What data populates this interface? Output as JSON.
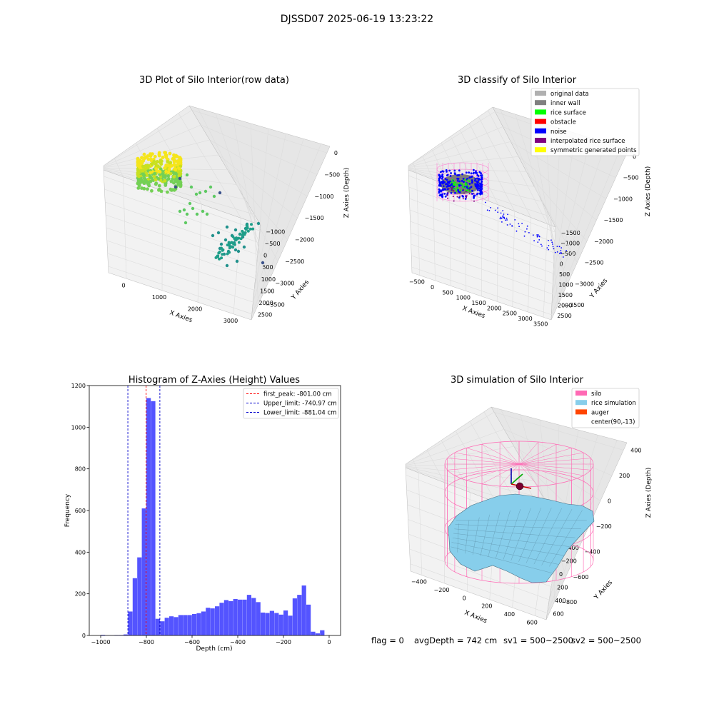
{
  "figure": {
    "title": "DJSSD07 2025-06-19 13:23:22",
    "footer": {
      "flag": "flag = 0",
      "avg_depth": "avgDepth = 742 cm",
      "sv1": "sv1 = 500~2500",
      "sv2": "sv2 = 500~2500"
    }
  },
  "colors": {
    "pane": "#f2f2f2",
    "grid": "#dcdcdc",
    "histogram_bar": "#4b4bff",
    "first_peak_line": "#ff0000",
    "limit_lines": "#0000cc",
    "silo": "#ff69b4",
    "rice_simulation": "#87ceeb",
    "auger": "#ff4500"
  },
  "chart_data": [
    {
      "type": "scatter",
      "projection": "3d",
      "title": "3D Plot of Silo Interior(row data)",
      "xlabel": "X Axies",
      "ylabel": "Y Axies",
      "zlabel": "Z Axies (Depth)",
      "x_ticks": [
        "0",
        "1000",
        "2000",
        "3000"
      ],
      "y_ticks": [
        "−1000",
        "−500",
        "0",
        "500",
        "1000",
        "1500",
        "2000",
        "2500"
      ],
      "z_ticks": [
        "0",
        "−500",
        "−1000",
        "−1500",
        "−2000",
        "−2500",
        "−3000",
        "−3500"
      ],
      "colormap": "viridis",
      "grid": true
    },
    {
      "type": "scatter",
      "projection": "3d",
      "title": "3D classify of Silo Interior",
      "xlabel": "X Axies",
      "ylabel": "Y Axies",
      "zlabel": "Z Axies (Depth)",
      "x_ticks": [
        "−500",
        "0",
        "500",
        "1000",
        "1500",
        "2000",
        "2500",
        "3000",
        "3500"
      ],
      "y_ticks": [
        "−1500",
        "−1000",
        "−500",
        "0",
        "500",
        "1000",
        "1500",
        "2000",
        "2500"
      ],
      "z_ticks": [
        "0",
        "−500",
        "−1000",
        "−1500",
        "−2000",
        "−2500",
        "−3000",
        "−3500"
      ],
      "legend_position": "top-right",
      "legend": [
        {
          "name": "original data",
          "color": "#b0b0b0"
        },
        {
          "name": "inner wall",
          "color": "#808080"
        },
        {
          "name": "rice surface",
          "color": "#00ff00"
        },
        {
          "name": "obstacle",
          "color": "#ff0000"
        },
        {
          "name": "noise",
          "color": "#0000ff"
        },
        {
          "name": "interpolated rice surface",
          "color": "#800080"
        },
        {
          "name": "symmetric generated points",
          "color": "#ffff00"
        }
      ],
      "grid": true
    },
    {
      "type": "bar",
      "title": "Histogram of Z-Axies (Height) Values",
      "xlabel": "Depth (cm)",
      "ylabel": "Frequency",
      "xlim": [
        -1050,
        50
      ],
      "ylim": [
        0,
        1200
      ],
      "x_ticks": [
        -1000,
        -800,
        -600,
        -400,
        -200,
        0
      ],
      "y_ticks": [
        0,
        200,
        400,
        600,
        800,
        1000,
        1200
      ],
      "bin_width": 20,
      "bins": [
        {
          "x": -1000,
          "count": 3
        },
        {
          "x": -980,
          "count": 1
        },
        {
          "x": -960,
          "count": 1
        },
        {
          "x": -940,
          "count": 2
        },
        {
          "x": -920,
          "count": 2
        },
        {
          "x": -900,
          "count": 5
        },
        {
          "x": -880,
          "count": 115
        },
        {
          "x": -860,
          "count": 275
        },
        {
          "x": -840,
          "count": 375
        },
        {
          "x": -820,
          "count": 610
        },
        {
          "x": -800,
          "count": 1140
        },
        {
          "x": -780,
          "count": 1125
        },
        {
          "x": -760,
          "count": 80
        },
        {
          "x": -740,
          "count": 68
        },
        {
          "x": -720,
          "count": 85
        },
        {
          "x": -700,
          "count": 92
        },
        {
          "x": -680,
          "count": 88
        },
        {
          "x": -660,
          "count": 98
        },
        {
          "x": -640,
          "count": 98
        },
        {
          "x": -620,
          "count": 98
        },
        {
          "x": -600,
          "count": 103
        },
        {
          "x": -580,
          "count": 107
        },
        {
          "x": -560,
          "count": 115
        },
        {
          "x": -540,
          "count": 133
        },
        {
          "x": -520,
          "count": 130
        },
        {
          "x": -500,
          "count": 140
        },
        {
          "x": -480,
          "count": 157
        },
        {
          "x": -460,
          "count": 170
        },
        {
          "x": -440,
          "count": 165
        },
        {
          "x": -420,
          "count": 175
        },
        {
          "x": -400,
          "count": 172
        },
        {
          "x": -380,
          "count": 172
        },
        {
          "x": -360,
          "count": 195
        },
        {
          "x": -340,
          "count": 180
        },
        {
          "x": -320,
          "count": 160
        },
        {
          "x": -300,
          "count": 110
        },
        {
          "x": -280,
          "count": 108
        },
        {
          "x": -260,
          "count": 118
        },
        {
          "x": -240,
          "count": 108
        },
        {
          "x": -220,
          "count": 100
        },
        {
          "x": -200,
          "count": 120
        },
        {
          "x": -180,
          "count": 95
        },
        {
          "x": -160,
          "count": 178
        },
        {
          "x": -140,
          "count": 195
        },
        {
          "x": -120,
          "count": 240
        },
        {
          "x": -100,
          "count": 148
        },
        {
          "x": -80,
          "count": 18
        },
        {
          "x": -60,
          "count": 10
        },
        {
          "x": -40,
          "count": 25
        }
      ],
      "vlines": [
        {
          "name": "first_peak: -801.00 cm",
          "x": -801.0,
          "color": "#ff0000"
        },
        {
          "name": "Upper_limit: -740.97 cm",
          "x": -740.97,
          "color": "#0000cc"
        },
        {
          "name": "Lower_limit: -881.04 cm",
          "x": -881.04,
          "color": "#0000cc"
        }
      ],
      "legend_position": "top-right"
    },
    {
      "type": "surface",
      "projection": "3d",
      "title": "3D simulation of Silo Interior",
      "xlabel": "X Axies",
      "ylabel": "Y Axies",
      "zlabel": "Z Axies (Depth)",
      "x_ticks": [
        "−400",
        "−200",
        "0",
        "200",
        "400",
        "600"
      ],
      "y_ticks": [
        "−600",
        "−400",
        "−200",
        "0",
        "200",
        "400",
        "600"
      ],
      "z_ticks": [
        "400",
        "200",
        "0",
        "−200",
        "−400",
        "−600",
        "−800"
      ],
      "legend_position": "top-right",
      "legend": [
        {
          "name": "silo",
          "color": "#ff69b4"
        },
        {
          "name": "rice simulation",
          "color": "#87ceeb"
        },
        {
          "name": "auger",
          "color": "#ff4500"
        },
        {
          "name": "center(90,-13)",
          "color": "#ffffff"
        }
      ],
      "center": [
        90,
        -13
      ],
      "grid": true
    }
  ]
}
